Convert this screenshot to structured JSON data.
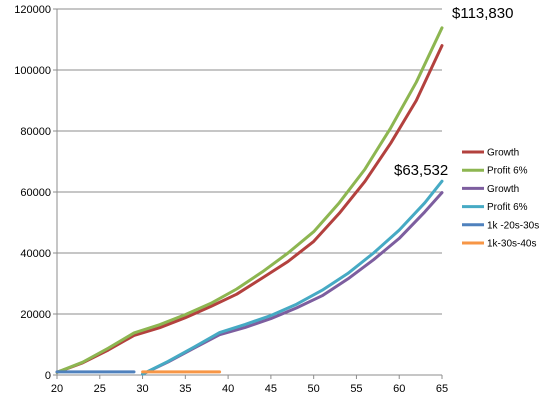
{
  "chart_data": {
    "type": "line",
    "title": "",
    "xlabel": "",
    "ylabel": "",
    "xlim": [
      20,
      65
    ],
    "ylim": [
      0,
      120000
    ],
    "x_ticks": [
      "20",
      "25",
      "30",
      "35",
      "40",
      "45",
      "50",
      "55",
      "60",
      "65"
    ],
    "y_ticks": [
      "0",
      "20000",
      "40000",
      "60000",
      "80000",
      "100000",
      "120000"
    ],
    "grid": "horizontal",
    "legend_position": "right",
    "series": [
      {
        "name": "Growth",
        "color": "#B3413E",
        "points": [
          [
            20,
            900
          ],
          [
            23,
            4000
          ],
          [
            26,
            8200
          ],
          [
            29,
            13000
          ],
          [
            32,
            15500
          ],
          [
            35,
            18800
          ],
          [
            38,
            22500
          ],
          [
            41,
            26500
          ],
          [
            44,
            31800
          ],
          [
            47,
            37200
          ],
          [
            50,
            43800
          ],
          [
            53,
            53000
          ],
          [
            56,
            63500
          ],
          [
            59,
            76000
          ],
          [
            62,
            90000
          ],
          [
            65,
            108000
          ]
        ]
      },
      {
        "name": "Profit 6%",
        "color": "#8DB651",
        "points": [
          [
            20,
            900
          ],
          [
            23,
            4200
          ],
          [
            26,
            8800
          ],
          [
            29,
            13800
          ],
          [
            32,
            16500
          ],
          [
            35,
            19800
          ],
          [
            38,
            23500
          ],
          [
            41,
            28200
          ],
          [
            44,
            33800
          ],
          [
            47,
            40000
          ],
          [
            50,
            47000
          ],
          [
            53,
            56500
          ],
          [
            56,
            67500
          ],
          [
            59,
            81000
          ],
          [
            62,
            96000
          ],
          [
            65,
            113830
          ]
        ]
      },
      {
        "name": "Growth",
        "color": "#7D5E9F",
        "points": [
          [
            30,
            300
          ],
          [
            33,
            4300
          ],
          [
            36,
            8800
          ],
          [
            39,
            13200
          ],
          [
            42,
            15600
          ],
          [
            45,
            18500
          ],
          [
            48,
            22000
          ],
          [
            51,
            26000
          ],
          [
            54,
            31500
          ],
          [
            57,
            37800
          ],
          [
            60,
            44800
          ],
          [
            63,
            53500
          ],
          [
            65,
            59800
          ]
        ]
      },
      {
        "name": "Profit 6%",
        "color": "#46AAC4",
        "points": [
          [
            30,
            300
          ],
          [
            33,
            4500
          ],
          [
            36,
            9100
          ],
          [
            39,
            13900
          ],
          [
            42,
            16600
          ],
          [
            45,
            19500
          ],
          [
            48,
            23200
          ],
          [
            51,
            27800
          ],
          [
            54,
            33300
          ],
          [
            57,
            40000
          ],
          [
            60,
            47500
          ],
          [
            63,
            56500
          ],
          [
            65,
            63532
          ]
        ]
      },
      {
        "name": "1k -20s-30s",
        "color": "#4F81BD",
        "points": [
          [
            20,
            1000
          ],
          [
            29,
            1000
          ]
        ]
      },
      {
        "name": "1k-30s-40s",
        "color": "#F79646",
        "points": [
          [
            30,
            1000
          ],
          [
            39,
            1000
          ]
        ]
      }
    ],
    "annotations": [
      {
        "text": "$113,830",
        "x": 65,
        "y": 113830
      },
      {
        "text": "$63,532",
        "x": 65,
        "y": 63532
      }
    ]
  }
}
